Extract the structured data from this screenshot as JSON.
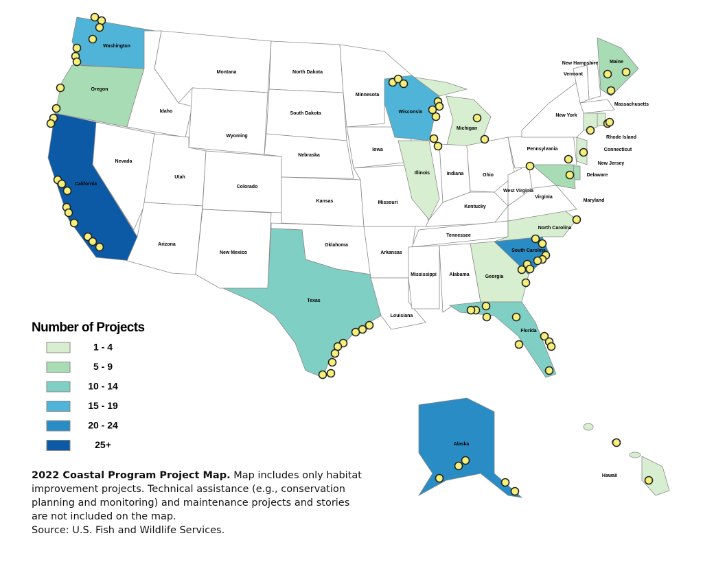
{
  "legend": {
    "title": "Number of Projects",
    "items": [
      {
        "label": "1 - 4",
        "color": "#d7efd0"
      },
      {
        "label": "5 - 9",
        "color": "#a8dcb4"
      },
      {
        "label": "10 - 14",
        "color": "#80cfc4"
      },
      {
        "label": "15 - 19",
        "color": "#4fb4d8"
      },
      {
        "label": "20 - 24",
        "color": "#2a8cc4"
      },
      {
        "label": "25+",
        "color": "#0c5aa6"
      }
    ]
  },
  "states": [
    {
      "label": "Washington",
      "color": "#4fb4d8"
    },
    {
      "label": "Oregon",
      "color": "#a8dcb4"
    },
    {
      "label": "California",
      "color": "#0c5aa6"
    },
    {
      "label": "Nevada",
      "color": "#ffffff"
    },
    {
      "label": "Idaho",
      "color": "#ffffff"
    },
    {
      "label": "Montana",
      "color": "#ffffff"
    },
    {
      "label": "Wyoming",
      "color": "#ffffff"
    },
    {
      "label": "Utah",
      "color": "#ffffff"
    },
    {
      "label": "Arizona",
      "color": "#ffffff"
    },
    {
      "label": "Colorado",
      "color": "#ffffff"
    },
    {
      "label": "New Mexico",
      "color": "#ffffff"
    },
    {
      "label": "North Dakota",
      "color": "#ffffff"
    },
    {
      "label": "South Dakota",
      "color": "#ffffff"
    },
    {
      "label": "Nebraska",
      "color": "#ffffff"
    },
    {
      "label": "Kansas",
      "color": "#ffffff"
    },
    {
      "label": "Oklahoma",
      "color": "#ffffff"
    },
    {
      "label": "Texas",
      "color": "#80cfc4"
    },
    {
      "label": "Minnesota",
      "color": "#ffffff"
    },
    {
      "label": "Iowa",
      "color": "#ffffff"
    },
    {
      "label": "Missouri",
      "color": "#ffffff"
    },
    {
      "label": "Arkansas",
      "color": "#ffffff"
    },
    {
      "label": "Louisiana",
      "color": "#ffffff"
    },
    {
      "label": "Wisconsin",
      "color": "#4fb4d8"
    },
    {
      "label": "Illinois",
      "color": "#d7efd0"
    },
    {
      "label": "Michigan",
      "color": "#d7efd0"
    },
    {
      "label": "Indiana",
      "color": "#ffffff"
    },
    {
      "label": "Ohio",
      "color": "#ffffff"
    },
    {
      "label": "Kentucky",
      "color": "#ffffff"
    },
    {
      "label": "Tennessee",
      "color": "#ffffff"
    },
    {
      "label": "Mississippi",
      "color": "#ffffff"
    },
    {
      "label": "Alabama",
      "color": "#ffffff"
    },
    {
      "label": "Georgia",
      "color": "#d7efd0"
    },
    {
      "label": "South Carolina",
      "color": "#2a8cc4"
    },
    {
      "label": "North Carolina",
      "color": "#d7efd0"
    },
    {
      "label": "Virginia",
      "color": "#ffffff"
    },
    {
      "label": "West Virginia",
      "color": "#ffffff"
    },
    {
      "label": "Pennsylvania",
      "color": "#ffffff"
    },
    {
      "label": "New York",
      "color": "#ffffff"
    },
    {
      "label": "Maine",
      "color": "#a8dcb4"
    },
    {
      "label": "New Hampshire",
      "color": "#ffffff"
    },
    {
      "label": "Vermont",
      "color": "#ffffff"
    },
    {
      "label": "Massachusetts",
      "color": "#ffffff"
    },
    {
      "label": "Rhode Island",
      "color": "#d7efd0"
    },
    {
      "label": "Connecticut",
      "color": "#d7efd0"
    },
    {
      "label": "New Jersey",
      "color": "#d7efd0"
    },
    {
      "label": "Delaware",
      "color": "#a8dcb4"
    },
    {
      "label": "Maryland",
      "color": "#a8dcb4"
    },
    {
      "label": "Florida",
      "color": "#80cfc4"
    },
    {
      "label": "Alaska",
      "color": "#2a8cc4"
    },
    {
      "label": "Hawaii",
      "color": "#d7efd0"
    }
  ],
  "caption": {
    "title": "2022 Coastal Program Project Map.",
    "text": "Map includes only habitat improvement projects. Technical assistance (e.g., conservation planning and monitoring) and maintenance projects and stories are not included on the map.",
    "source": "Source: U.S. Fish and Wildlife Services."
  }
}
